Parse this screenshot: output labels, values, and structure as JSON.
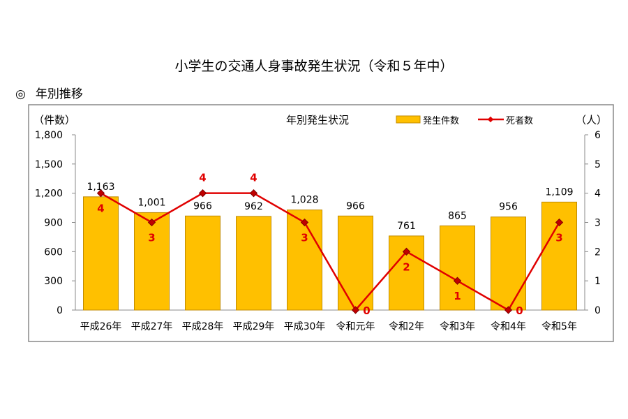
{
  "page_title": "小学生の交通人身事故発生状況（令和５年中）",
  "section": {
    "mark": "◎",
    "label": "年別推移"
  },
  "chart_data": {
    "type": "bar+line",
    "title": "年別発生状況",
    "categories": [
      "平成26年",
      "平成27年",
      "平成28年",
      "平成29年",
      "平成30年",
      "令和元年",
      "令和2年",
      "令和3年",
      "令和4年",
      "令和5年"
    ],
    "series": [
      {
        "name": "発生件数",
        "type": "bar",
        "axis": "left",
        "color": "#FFC000",
        "values": [
          1163,
          1001,
          966,
          962,
          1028,
          966,
          761,
          865,
          956,
          1109
        ],
        "labels": [
          "1,163",
          "1,001",
          "966",
          "962",
          "1,028",
          "966",
          "761",
          "865",
          "956",
          "1,109"
        ]
      },
      {
        "name": "死者数",
        "type": "line",
        "axis": "right",
        "color": "#E00000",
        "values": [
          4,
          3,
          4,
          4,
          3,
          0,
          2,
          1,
          0,
          3
        ]
      }
    ],
    "ylabel_left": "（件数）",
    "ylabel_right": "（人）",
    "ylim_left": [
      0,
      1800
    ],
    "ylim_right": [
      0,
      6
    ],
    "yticks_left": [
      "0",
      "300",
      "600",
      "900",
      "1,200",
      "1,500",
      "1,800"
    ],
    "yticks_right": [
      "0",
      "1",
      "2",
      "3",
      "4",
      "5",
      "6"
    ],
    "grid": false,
    "legend": "top-right"
  }
}
